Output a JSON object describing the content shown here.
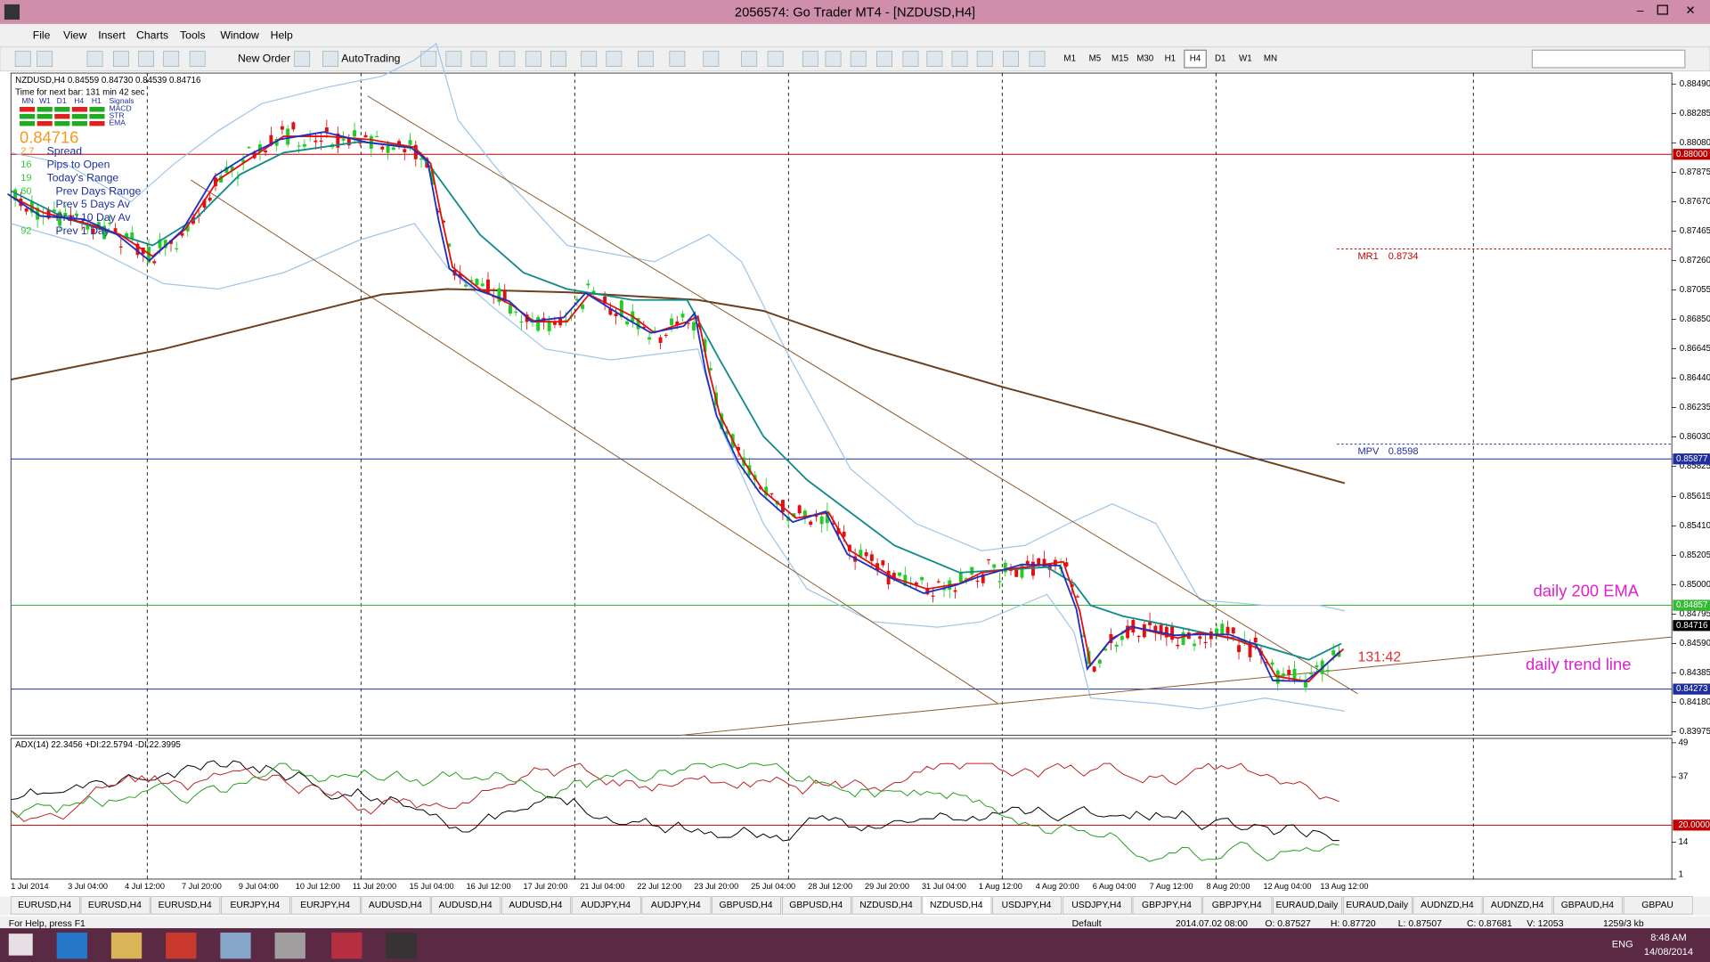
{
  "window": {
    "title": "2056574: Go Trader MT4 - [NZDUSD,H4]"
  },
  "menu": [
    "File",
    "View",
    "Insert",
    "Charts",
    "Tools",
    "Window",
    "Help"
  ],
  "toolbar": {
    "new_order": "New Order",
    "autotrading": "AutoTrading",
    "timeframes": [
      "M1",
      "M5",
      "M15",
      "M30",
      "H1",
      "H4",
      "D1",
      "W1",
      "MN"
    ],
    "active_timeframe": 5
  },
  "chart": {
    "header": "NZDUSD,H4  0.84559 0.84730 0.84539 0.84716",
    "timer": "Time for next bar: 131 min 42 sec",
    "signal_columns": [
      "MN",
      "W1",
      "D1",
      "H4",
      "H1",
      "Signals"
    ],
    "signal_rows": [
      "MACD",
      "STR",
      "EMA"
    ],
    "price": "0.84716",
    "stats": [
      {
        "num": "2.7",
        "label": "Spread"
      },
      {
        "num": "16",
        "label": "Pips to Open"
      },
      {
        "num": "19",
        "label": "Today's Range"
      },
      {
        "num": "60",
        "label": "Prev Days Range"
      },
      {
        "label": "Prev 5 Days Av"
      },
      {
        "label": "Prev 10 Day Av"
      },
      {
        "num": "92",
        "label": "Prev 1 Day"
      }
    ],
    "ylim": [
      0.83975,
      0.8849
    ],
    "yticks": [
      {
        "value": 0.8849,
        "label": "0.88490"
      },
      {
        "value": 0.88285,
        "label": "0.88285"
      },
      {
        "value": 0.8808,
        "label": "0.88080"
      },
      {
        "value": 0.87875,
        "label": "0.87875"
      },
      {
        "value": 0.8767,
        "label": "0.87670"
      },
      {
        "value": 0.87465,
        "label": "0.87465"
      },
      {
        "value": 0.8726,
        "label": "0.87260"
      },
      {
        "value": 0.87055,
        "label": "0.87055"
      },
      {
        "value": 0.8685,
        "label": "0.86850"
      },
      {
        "value": 0.86645,
        "label": "0.86645"
      },
      {
        "value": 0.8644,
        "label": "0.86440"
      },
      {
        "value": 0.86235,
        "label": "0.86235"
      },
      {
        "value": 0.8603,
        "label": "0.86030"
      },
      {
        "value": 0.85825,
        "label": "0.85825"
      },
      {
        "value": 0.85615,
        "label": "0.85615"
      },
      {
        "value": 0.8541,
        "label": "0.85410"
      },
      {
        "value": 0.85205,
        "label": "0.85205"
      },
      {
        "value": 0.85,
        "label": "0.85000"
      },
      {
        "value": 0.84795,
        "label": "0.84795"
      },
      {
        "value": 0.8459,
        "label": "0.84590"
      },
      {
        "value": 0.84385,
        "label": "0.84385"
      },
      {
        "value": 0.8418,
        "label": "0.84180"
      },
      {
        "value": 0.83975,
        "label": "0.83975"
      }
    ],
    "levels": [
      {
        "value": 0.88,
        "label": "0.88000",
        "color": "#c00000",
        "line": true
      },
      {
        "value": 0.85877,
        "label": "0.85877",
        "color": "#1f2fa0",
        "line": true
      },
      {
        "value": 0.84857,
        "label": "0.84857",
        "color": "#33bb33",
        "line": true
      },
      {
        "value": 0.84716,
        "label": "0.84716",
        "color": "#000000",
        "line": false
      },
      {
        "value": 0.84273,
        "label": "0.84273",
        "color": "#1f2fa0",
        "line": true
      }
    ],
    "pivots": [
      {
        "name": "MR1",
        "value": 0.8734,
        "label": "0.8734",
        "color": "#c00000"
      },
      {
        "name": "MPV",
        "value": 0.8598,
        "label": "0.8598",
        "color": "#1f2fa0"
      }
    ],
    "annotations": {
      "ema": "daily 200 EMA",
      "trend": "daily trend line",
      "countdown": "131:42"
    },
    "dates": [
      "1 Jul 2014",
      "3 Jul 04:00",
      "4 Jul 12:00",
      "7 Jul 20:00",
      "9 Jul 04:00",
      "10 Jul 12:00",
      "11 Jul 20:00",
      "15 Jul 04:00",
      "16 Jul 12:00",
      "17 Jul 20:00",
      "21 Jul 04:00",
      "22 Jul 12:00",
      "23 Jul 20:00",
      "25 Jul 04:00",
      "28 Jul 12:00",
      "29 Jul 20:00",
      "31 Jul 04:00",
      "1 Aug 12:00",
      "4 Aug 20:00",
      "6 Aug 04:00",
      "7 Aug 12:00",
      "8 Aug 20:00",
      "12 Aug 04:00",
      "13 Aug 12:00"
    ]
  },
  "indicator": {
    "header": "ADX(14) 22.3456 +DI:22.5794 -DI:22.3995",
    "ylim": [
      1,
      49
    ],
    "yticks": [
      49,
      37,
      {
        "value": 20,
        "label": "20.0000"
      },
      14,
      1
    ]
  },
  "tabs": [
    "EURUSD,H4",
    "EURUSD,H4",
    "EURUSD,H4",
    "EURJPY,H4",
    "EURJPY,H4",
    "AUDUSD,H4",
    "AUDUSD,H4",
    "AUDUSD,H4",
    "AUDJPY,H4",
    "AUDJPY,H4",
    "GBPUSD,H4",
    "GBPUSD,H4",
    "NZDUSD,H4",
    "NZDUSD,H4",
    "USDJPY,H4",
    "USDJPY,H4",
    "GBPJPY,H4",
    "GBPJPY,H4",
    "EURAUD,Daily",
    "EURAUD,Daily",
    "AUDNZD,H4",
    "AUDNZD,H4",
    "GBPAUD,H4",
    "GBPAU"
  ],
  "active_tab": 13,
  "status": {
    "help": "For Help, press F1",
    "profile": "Default",
    "time": "2014.07.02 08:00",
    "open": "O: 0.87527",
    "high": "H: 0.87720",
    "low": "L: 0.87507",
    "close": "C: 0.87681",
    "volume": "V: 12053",
    "traffic": "1259/3 kb"
  },
  "taskbar": {
    "language": "ENG",
    "time": "8:48 AM",
    "date": "14/08/2014"
  }
}
